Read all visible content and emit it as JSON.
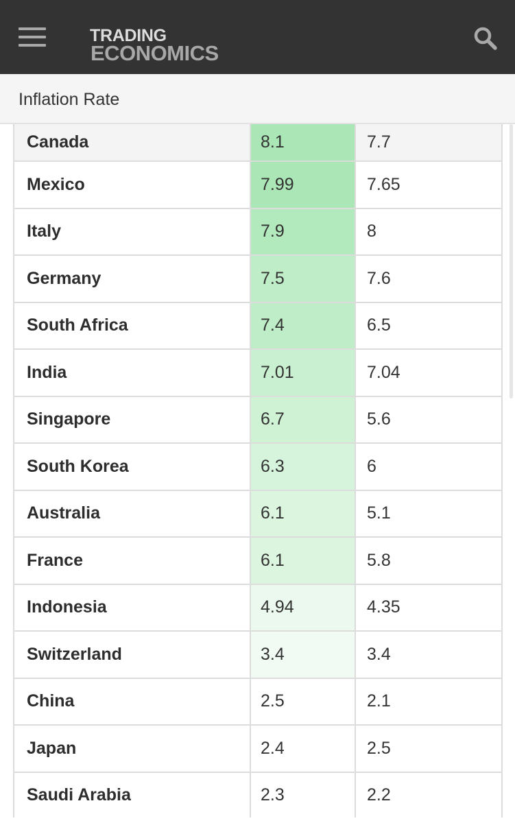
{
  "header": {
    "logo_line1": "TRADING",
    "logo_line2": "ECONOMICS",
    "menu_icon": "hamburger-menu-icon",
    "search_icon": "search-icon"
  },
  "subheader": {
    "title": "Inflation Rate"
  },
  "table": {
    "rows": [
      {
        "country": "Canada",
        "last": "8.1",
        "previous": "7.7",
        "highlight": "#abe7b6"
      },
      {
        "country": "Mexico",
        "last": "7.99",
        "previous": "7.65",
        "highlight": "#abe7b6"
      },
      {
        "country": "Italy",
        "last": "7.9",
        "previous": "8",
        "highlight": "#b2e9bd"
      },
      {
        "country": "Germany",
        "last": "7.5",
        "previous": "7.6",
        "highlight": "#bfedc7"
      },
      {
        "country": "South Africa",
        "last": "7.4",
        "previous": "6.5",
        "highlight": "#bfedc7"
      },
      {
        "country": "India",
        "last": "7.01",
        "previous": "7.04",
        "highlight": "#c9f0d0"
      },
      {
        "country": "Singapore",
        "last": "6.7",
        "previous": "5.6",
        "highlight": "#cff2d5"
      },
      {
        "country": "South Korea",
        "last": "6.3",
        "previous": "6",
        "highlight": "#d6f4db"
      },
      {
        "country": "Australia",
        "last": "6.1",
        "previous": "5.1",
        "highlight": "#dbf5df"
      },
      {
        "country": "France",
        "last": "6.1",
        "previous": "5.8",
        "highlight": "#dbf5df"
      },
      {
        "country": "Indonesia",
        "last": "4.94",
        "previous": "4.35",
        "highlight": "#ebf9ee"
      },
      {
        "country": "Switzerland",
        "last": "3.4",
        "previous": "3.4",
        "highlight": "#f1fbf3"
      },
      {
        "country": "China",
        "last": "2.5",
        "previous": "2.1",
        "highlight": "#ffffff"
      },
      {
        "country": "Japan",
        "last": "2.4",
        "previous": "2.5",
        "highlight": "#ffffff"
      },
      {
        "country": "Saudi Arabia",
        "last": "2.3",
        "previous": "2.2",
        "highlight": "#ffffff"
      }
    ]
  }
}
